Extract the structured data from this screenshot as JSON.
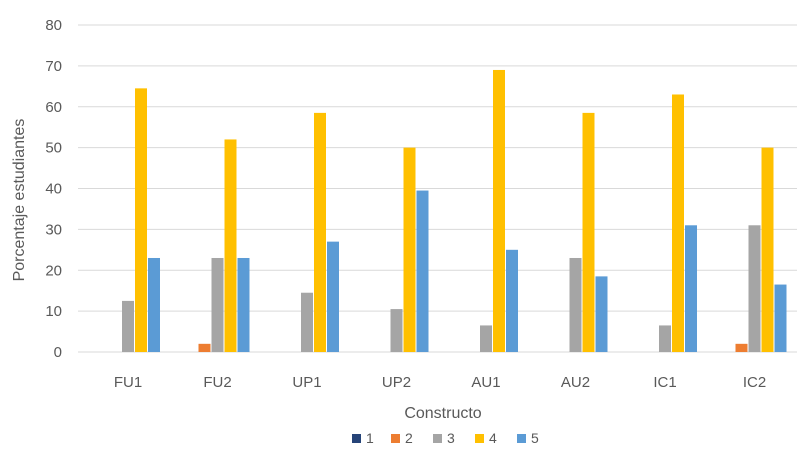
{
  "chart_data": {
    "type": "bar",
    "title": "",
    "xlabel": "Constructo",
    "ylabel": "Porcentaje estudiantes",
    "ylim": [
      0,
      80
    ],
    "yticks": [
      0,
      10,
      20,
      30,
      40,
      50,
      60,
      70,
      80
    ],
    "grid": true,
    "legend_position": "bottom",
    "categories": [
      "FU1",
      "FU2",
      "UP1",
      "UP2",
      "AU1",
      "AU2",
      "IC1",
      "IC2"
    ],
    "series": [
      {
        "name": "1",
        "color": "#264478",
        "values": [
          0,
          0,
          0,
          0,
          0,
          0,
          0,
          0
        ]
      },
      {
        "name": "2",
        "color": "#ED7D31",
        "values": [
          0,
          2,
          0,
          0,
          0,
          0,
          0,
          2
        ]
      },
      {
        "name": "3",
        "color": "#A5A5A5",
        "values": [
          12.5,
          23,
          14.5,
          10.5,
          6.5,
          23,
          6.5,
          31
        ]
      },
      {
        "name": "4",
        "color": "#FFC000",
        "values": [
          64.5,
          52,
          58.5,
          50,
          69,
          58.5,
          63,
          50
        ]
      },
      {
        "name": "5",
        "color": "#5B9BD5",
        "values": [
          23,
          23,
          27,
          39.5,
          25,
          18.5,
          31,
          16.5
        ]
      }
    ]
  }
}
